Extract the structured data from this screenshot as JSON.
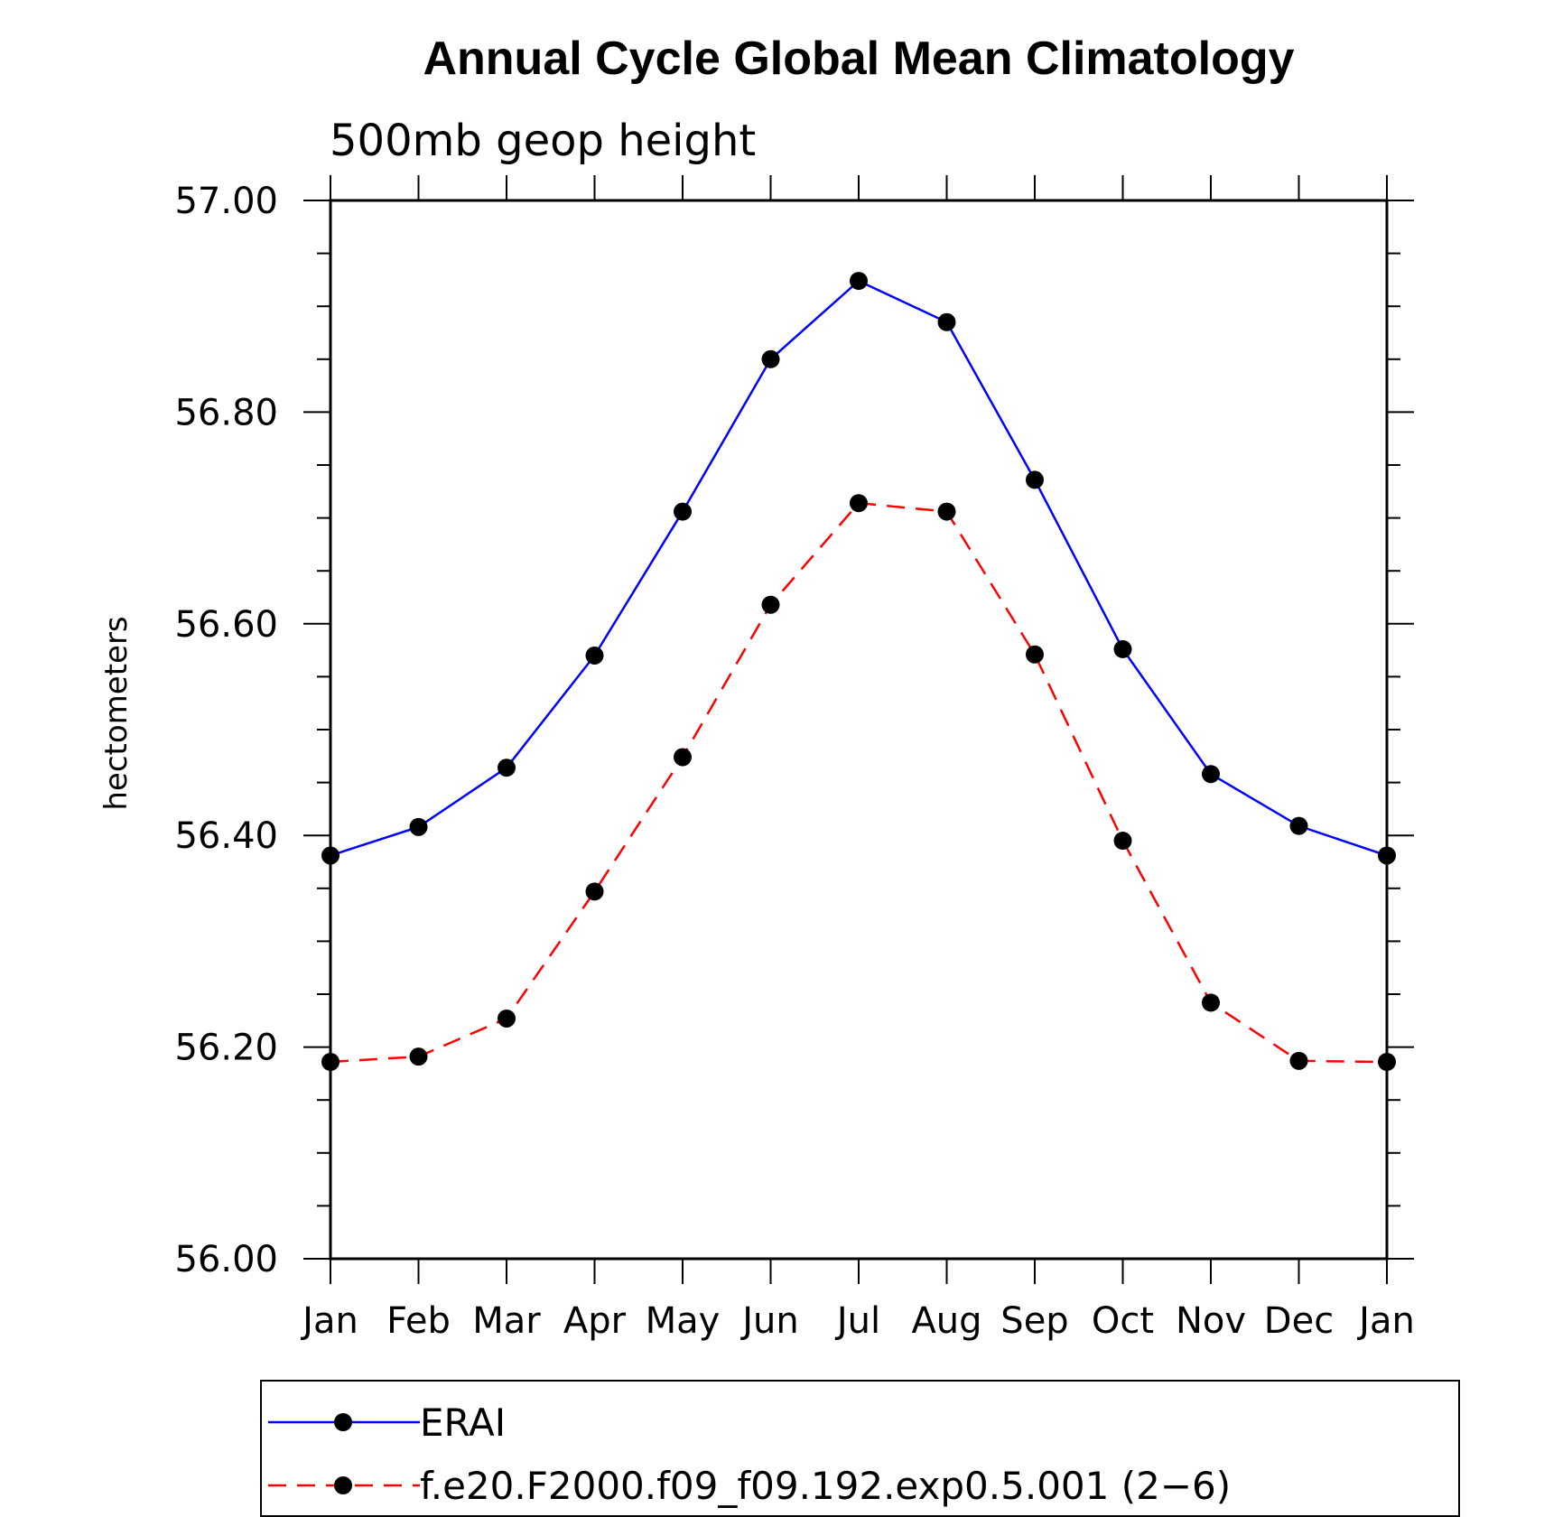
{
  "chart_data": {
    "type": "line",
    "title": "Annual Cycle Global Mean Climatology",
    "subtitle": "500mb geop height",
    "xlabel": "",
    "ylabel": "hectometers",
    "categories": [
      "Jan",
      "Feb",
      "Mar",
      "Apr",
      "May",
      "Jun",
      "Jul",
      "Aug",
      "Sep",
      "Oct",
      "Nov",
      "Dec",
      "Jan"
    ],
    "ylim": [
      56.0,
      57.0
    ],
    "yticks": [
      "56.00",
      "56.20",
      "56.40",
      "56.60",
      "56.80",
      "57.00"
    ],
    "grid": false,
    "legend_position": "bottom",
    "series": [
      {
        "name": "ERAI",
        "color": "#0000ff",
        "line_style": "solid",
        "marker": "filled-circle",
        "values": [
          56.381,
          56.408,
          56.464,
          56.57,
          56.706,
          56.85,
          56.924,
          56.885,
          56.736,
          56.576,
          56.458,
          56.409,
          56.381
        ]
      },
      {
        "name": "f.e20.F2000.f09_f09.192.exp0.5.001 (2−6)",
        "color": "#ff0000",
        "line_style": "dashed",
        "marker": "filled-circle",
        "values": [
          56.186,
          56.191,
          56.227,
          56.347,
          56.474,
          56.618,
          56.714,
          56.706,
          56.571,
          56.395,
          56.242,
          56.187,
          56.186
        ]
      }
    ]
  }
}
